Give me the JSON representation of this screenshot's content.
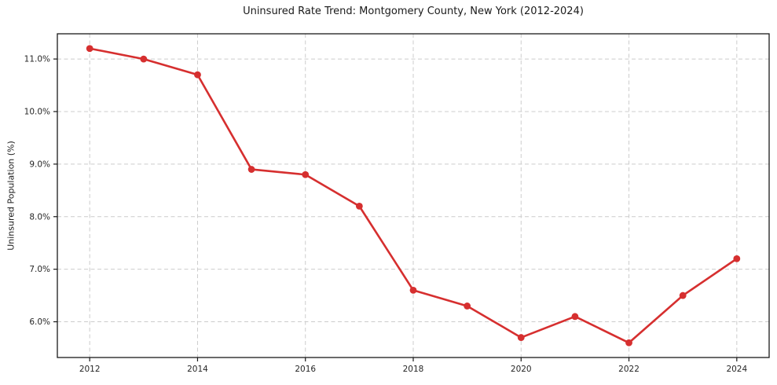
{
  "chart_data": {
    "type": "line",
    "title": "Uninsured Rate Trend: Montgomery County, New York (2012-2024)",
    "xlabel": "",
    "ylabel": "Uninsured Population (%)",
    "x": [
      2012,
      2013,
      2014,
      2015,
      2016,
      2017,
      2018,
      2019,
      2020,
      2021,
      2022,
      2023,
      2024
    ],
    "series": [
      {
        "name": "Uninsured Population (%)",
        "values": [
          11.2,
          11.0,
          10.7,
          8.9,
          8.8,
          8.2,
          6.6,
          6.3,
          5.7,
          6.1,
          5.6,
          6.5,
          7.2
        ],
        "color": "#d62f2f",
        "marker": "circle"
      }
    ],
    "xlim": [
      2011.4,
      2024.6
    ],
    "ylim": [
      5.32,
      11.48
    ],
    "x_ticks": [
      2012,
      2014,
      2016,
      2018,
      2020,
      2022,
      2024
    ],
    "x_tick_labels": [
      "2012",
      "2014",
      "2016",
      "2018",
      "2020",
      "2022",
      "2024"
    ],
    "y_ticks": [
      6,
      7,
      8,
      9,
      10,
      11
    ],
    "y_tick_labels": [
      "6.0%",
      "7.0%",
      "8.0%",
      "9.0%",
      "10.0%",
      "11.0%"
    ],
    "grid": true,
    "grid_style": "dashed",
    "legend": "none",
    "styles": {
      "grid_color": "#cccccc",
      "axis_color": "#1a1a1a",
      "text_color": "#262626",
      "background": "#ffffff"
    }
  }
}
